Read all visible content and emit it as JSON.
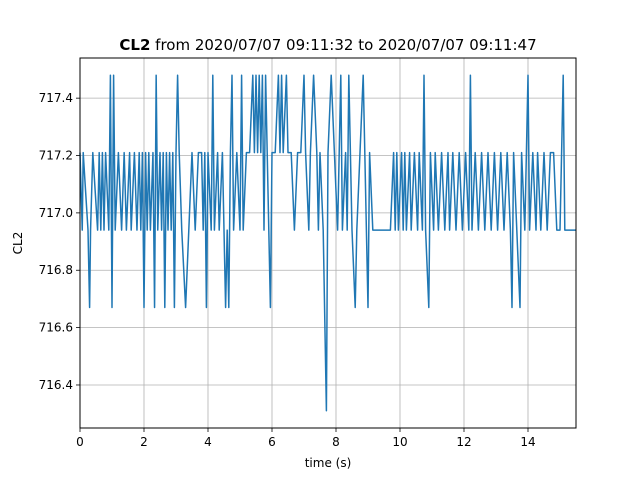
{
  "chart_data": {
    "type": "line",
    "title_bold": "CL2",
    "title_rest": " from 2020/07/07 09:11:32 to 2020/07/07 09:11:47",
    "xlabel": "time (s)",
    "ylabel": "CL2",
    "xlim": [
      0,
      15.5
    ],
    "ylim": [
      716.25,
      717.54
    ],
    "xticks": [
      0,
      2,
      4,
      6,
      8,
      10,
      12,
      14
    ],
    "xtick_labels": [
      "0",
      "2",
      "4",
      "6",
      "8",
      "10",
      "12",
      "14"
    ],
    "yticks": [
      716.4,
      716.6,
      716.8,
      717.0,
      717.2,
      717.4
    ],
    "ytick_labels": [
      "716.4",
      "716.6",
      "716.8",
      "717.0",
      "717.2",
      "717.4"
    ],
    "grid": true,
    "line_color": "#1f77b4",
    "levels": [
      716.31,
      716.67,
      716.94,
      717.21,
      717.48
    ],
    "series": [
      {
        "points": [
          [
            0,
            717.21
          ],
          [
            0.07,
            716.94
          ],
          [
            0.1,
            717.21
          ],
          [
            0.25,
            716.94
          ],
          [
            0.3,
            716.67
          ],
          [
            0.33,
            716.94
          ],
          [
            0.4,
            717.21
          ],
          [
            0.55,
            716.94
          ],
          [
            0.6,
            717.21
          ],
          [
            0.65,
            716.94
          ],
          [
            0.7,
            717.21
          ],
          [
            0.75,
            716.94
          ],
          [
            0.8,
            717.21
          ],
          [
            0.9,
            716.94
          ],
          [
            0.95,
            717.48
          ],
          [
            1.0,
            716.67
          ],
          [
            1.05,
            717.48
          ],
          [
            1.1,
            716.94
          ],
          [
            1.2,
            717.21
          ],
          [
            1.3,
            716.94
          ],
          [
            1.38,
            717.21
          ],
          [
            1.45,
            716.94
          ],
          [
            1.55,
            717.21
          ],
          [
            1.6,
            716.94
          ],
          [
            1.7,
            717.21
          ],
          [
            1.78,
            716.94
          ],
          [
            1.85,
            717.21
          ],
          [
            1.9,
            716.94
          ],
          [
            1.95,
            717.21
          ],
          [
            2.0,
            716.67
          ],
          [
            2.05,
            717.21
          ],
          [
            2.1,
            716.94
          ],
          [
            2.15,
            717.21
          ],
          [
            2.2,
            716.94
          ],
          [
            2.28,
            717.21
          ],
          [
            2.33,
            716.67
          ],
          [
            2.38,
            717.48
          ],
          [
            2.43,
            716.94
          ],
          [
            2.5,
            717.21
          ],
          [
            2.55,
            716.94
          ],
          [
            2.6,
            717.21
          ],
          [
            2.65,
            716.67
          ],
          [
            2.7,
            717.21
          ],
          [
            2.75,
            716.94
          ],
          [
            2.8,
            717.21
          ],
          [
            2.85,
            716.94
          ],
          [
            2.9,
            717.21
          ],
          [
            2.95,
            716.67
          ],
          [
            3.0,
            717.21
          ],
          [
            3.05,
            717.48
          ],
          [
            3.1,
            717.21
          ],
          [
            3.18,
            716.94
          ],
          [
            3.3,
            716.67
          ],
          [
            3.4,
            716.94
          ],
          [
            3.5,
            717.21
          ],
          [
            3.6,
            716.94
          ],
          [
            3.7,
            717.21
          ],
          [
            3.8,
            717.21
          ],
          [
            3.85,
            716.94
          ],
          [
            3.9,
            717.21
          ],
          [
            3.95,
            716.67
          ],
          [
            4.0,
            717.21
          ],
          [
            4.1,
            716.94
          ],
          [
            4.15,
            717.48
          ],
          [
            4.2,
            716.94
          ],
          [
            4.3,
            717.21
          ],
          [
            4.35,
            716.94
          ],
          [
            4.45,
            717.21
          ],
          [
            4.5,
            716.94
          ],
          [
            4.55,
            716.67
          ],
          [
            4.6,
            716.94
          ],
          [
            4.65,
            716.67
          ],
          [
            4.7,
            717.21
          ],
          [
            4.75,
            717.48
          ],
          [
            4.8,
            716.94
          ],
          [
            4.9,
            717.21
          ],
          [
            5.0,
            716.94
          ],
          [
            5.05,
            717.48
          ],
          [
            5.1,
            716.94
          ],
          [
            5.2,
            717.21
          ],
          [
            5.3,
            717.21
          ],
          [
            5.4,
            717.48
          ],
          [
            5.45,
            717.21
          ],
          [
            5.5,
            717.48
          ],
          [
            5.55,
            717.21
          ],
          [
            5.6,
            717.48
          ],
          [
            5.65,
            717.21
          ],
          [
            5.7,
            717.48
          ],
          [
            5.75,
            716.94
          ],
          [
            5.8,
            717.48
          ],
          [
            5.85,
            717.21
          ],
          [
            5.95,
            716.67
          ],
          [
            6.0,
            717.21
          ],
          [
            6.1,
            717.21
          ],
          [
            6.2,
            717.48
          ],
          [
            6.25,
            717.21
          ],
          [
            6.3,
            717.48
          ],
          [
            6.35,
            717.21
          ],
          [
            6.45,
            717.48
          ],
          [
            6.5,
            717.21
          ],
          [
            6.6,
            717.21
          ],
          [
            6.7,
            716.94
          ],
          [
            6.8,
            717.21
          ],
          [
            6.9,
            717.21
          ],
          [
            7.0,
            717.48
          ],
          [
            7.05,
            717.21
          ],
          [
            7.15,
            716.94
          ],
          [
            7.2,
            717.21
          ],
          [
            7.3,
            717.48
          ],
          [
            7.4,
            717.21
          ],
          [
            7.45,
            716.94
          ],
          [
            7.5,
            717.21
          ],
          [
            7.6,
            716.94
          ],
          [
            7.7,
            716.31
          ],
          [
            7.75,
            717.21
          ],
          [
            7.85,
            717.48
          ],
          [
            7.95,
            717.21
          ],
          [
            8.05,
            716.94
          ],
          [
            8.15,
            717.48
          ],
          [
            8.2,
            716.94
          ],
          [
            8.3,
            717.21
          ],
          [
            8.35,
            716.94
          ],
          [
            8.4,
            717.48
          ],
          [
            8.5,
            716.94
          ],
          [
            8.6,
            716.67
          ],
          [
            8.65,
            716.94
          ],
          [
            8.75,
            717.21
          ],
          [
            8.85,
            717.48
          ],
          [
            8.95,
            716.94
          ],
          [
            9.0,
            716.67
          ],
          [
            9.05,
            717.21
          ],
          [
            9.15,
            716.94
          ],
          [
            9.3,
            716.94
          ],
          [
            9.5,
            716.94
          ],
          [
            9.7,
            716.94
          ],
          [
            9.8,
            717.21
          ],
          [
            9.85,
            716.94
          ],
          [
            9.9,
            717.21
          ],
          [
            9.95,
            716.94
          ],
          [
            10.05,
            717.21
          ],
          [
            10.1,
            716.94
          ],
          [
            10.15,
            717.21
          ],
          [
            10.2,
            716.94
          ],
          [
            10.3,
            717.21
          ],
          [
            10.35,
            716.94
          ],
          [
            10.45,
            717.21
          ],
          [
            10.55,
            716.94
          ],
          [
            10.6,
            717.21
          ],
          [
            10.7,
            716.94
          ],
          [
            10.75,
            717.48
          ],
          [
            10.8,
            716.94
          ],
          [
            10.9,
            716.67
          ],
          [
            10.95,
            717.21
          ],
          [
            11.05,
            716.94
          ],
          [
            11.1,
            717.21
          ],
          [
            11.2,
            716.94
          ],
          [
            11.3,
            717.21
          ],
          [
            11.4,
            716.94
          ],
          [
            11.5,
            717.21
          ],
          [
            11.55,
            716.94
          ],
          [
            11.65,
            717.21
          ],
          [
            11.75,
            716.94
          ],
          [
            11.85,
            717.21
          ],
          [
            11.95,
            716.94
          ],
          [
            12.05,
            717.21
          ],
          [
            12.15,
            716.94
          ],
          [
            12.2,
            717.48
          ],
          [
            12.25,
            716.94
          ],
          [
            12.35,
            717.21
          ],
          [
            12.45,
            716.94
          ],
          [
            12.55,
            717.21
          ],
          [
            12.65,
            716.94
          ],
          [
            12.75,
            717.21
          ],
          [
            12.85,
            716.94
          ],
          [
            12.95,
            717.21
          ],
          [
            13.05,
            716.94
          ],
          [
            13.15,
            717.21
          ],
          [
            13.25,
            716.94
          ],
          [
            13.35,
            717.21
          ],
          [
            13.45,
            716.94
          ],
          [
            13.5,
            716.67
          ],
          [
            13.55,
            717.21
          ],
          [
            13.65,
            716.94
          ],
          [
            13.75,
            716.67
          ],
          [
            13.8,
            717.21
          ],
          [
            13.9,
            716.94
          ],
          [
            14.0,
            717.48
          ],
          [
            14.05,
            716.94
          ],
          [
            14.15,
            717.21
          ],
          [
            14.25,
            716.94
          ],
          [
            14.3,
            717.21
          ],
          [
            14.4,
            716.94
          ],
          [
            14.5,
            717.21
          ],
          [
            14.6,
            716.94
          ],
          [
            14.7,
            717.21
          ],
          [
            14.8,
            717.21
          ],
          [
            14.9,
            716.94
          ],
          [
            15.0,
            716.94
          ],
          [
            15.1,
            717.48
          ],
          [
            15.15,
            716.94
          ],
          [
            15.3,
            716.94
          ],
          [
            15.5,
            716.94
          ]
        ]
      }
    ]
  }
}
